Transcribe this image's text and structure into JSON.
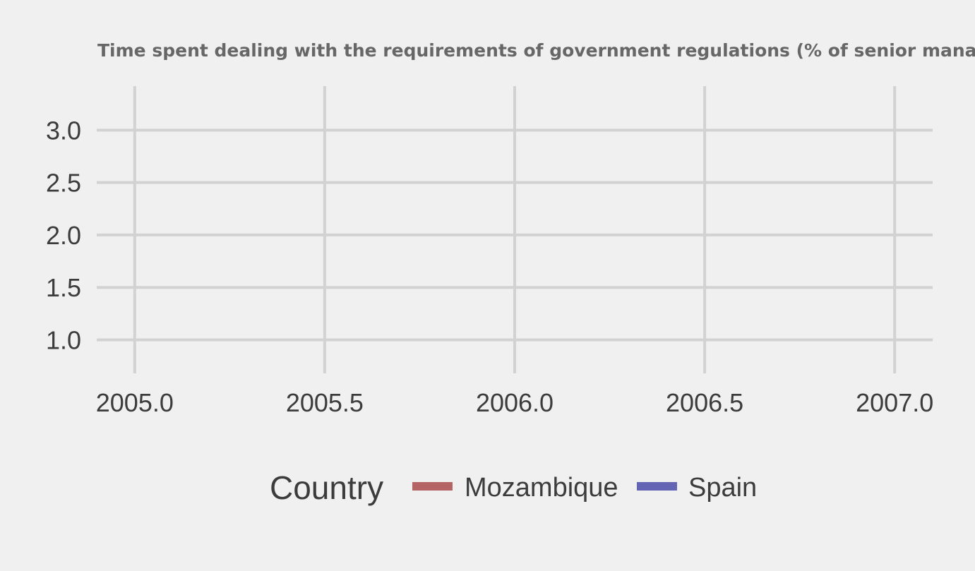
{
  "chart_data": {
    "type": "line",
    "title": "Time spent dealing with the requirements of government regulations (% of senior management time)",
    "xlabel": "",
    "ylabel": "",
    "xlim": [
      2004.9,
      2007.1
    ],
    "ylim": [
      0.68,
      3.42
    ],
    "x_ticks": [
      2005.0,
      2005.5,
      2006.0,
      2006.5,
      2007.0
    ],
    "x_tick_labels": [
      "2005.0",
      "2005.5",
      "2006.0",
      "2006.5",
      "2007.0"
    ],
    "y_ticks": [
      1.0,
      1.5,
      2.0,
      2.5,
      3.0
    ],
    "y_tick_labels": [
      "1.0",
      "1.5",
      "2.0",
      "2.5",
      "3.0"
    ],
    "grid": true,
    "legend": {
      "title": "Country",
      "position": "bottom"
    },
    "series": [
      {
        "name": "Mozambique",
        "color": "#b46464",
        "x": [],
        "y": []
      },
      {
        "name": "Spain",
        "color": "#6464b4",
        "x": [],
        "y": []
      }
    ]
  }
}
